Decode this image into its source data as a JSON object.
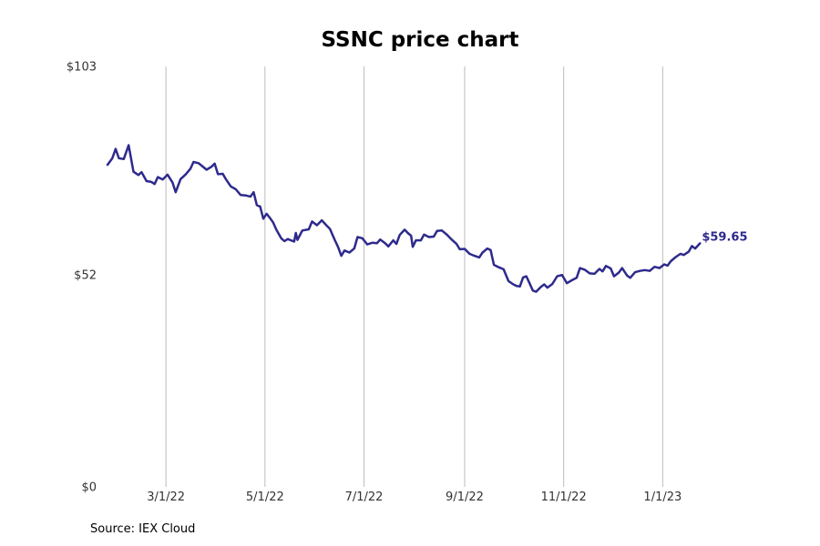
{
  "chart_data": {
    "type": "line",
    "title": "SSNC price chart",
    "xlabel": "",
    "ylabel": "",
    "ylim": [
      0,
      103
    ],
    "y_ticks": [
      {
        "value": 0,
        "label": "$0"
      },
      {
        "value": 52,
        "label": "$52"
      },
      {
        "value": 103,
        "label": "$103"
      }
    ],
    "x_ticks": [
      {
        "date": "2022-03-01",
        "label": "3/1/22"
      },
      {
        "date": "2022-05-01",
        "label": "5/1/22"
      },
      {
        "date": "2022-07-01",
        "label": "7/1/22"
      },
      {
        "date": "2022-09-01",
        "label": "9/1/22"
      },
      {
        "date": "2022-11-01",
        "label": "11/1/22"
      },
      {
        "date": "2023-01-01",
        "label": "1/1/23"
      }
    ],
    "x_range": [
      "2022-01-24",
      "2023-02-22"
    ],
    "grid": "vertical",
    "line_color": "#2e2a8c",
    "end_label": "$59.65",
    "series": [
      {
        "points": [
          [
            "2022-01-24",
            78.9
          ],
          [
            "2022-01-27",
            80.5
          ],
          [
            "2022-01-29",
            82.8
          ],
          [
            "2022-01-31",
            80.5
          ],
          [
            "2022-02-03",
            80.3
          ],
          [
            "2022-02-06",
            83.7
          ],
          [
            "2022-02-09",
            77.2
          ],
          [
            "2022-02-12",
            76.4
          ],
          [
            "2022-02-14",
            77.1
          ],
          [
            "2022-02-17",
            74.9
          ],
          [
            "2022-02-20",
            74.7
          ],
          [
            "2022-02-22",
            74.2
          ],
          [
            "2022-02-24",
            75.9
          ],
          [
            "2022-02-27",
            75.3
          ],
          [
            "2022-03-02",
            76.5
          ],
          [
            "2022-03-05",
            74.6
          ],
          [
            "2022-03-07",
            72.2
          ],
          [
            "2022-03-10",
            75.4
          ],
          [
            "2022-03-13",
            76.5
          ],
          [
            "2022-03-16",
            77.9
          ],
          [
            "2022-03-18",
            79.6
          ],
          [
            "2022-03-21",
            79.3
          ],
          [
            "2022-03-23",
            78.7
          ],
          [
            "2022-03-26",
            77.7
          ],
          [
            "2022-03-29",
            78.4
          ],
          [
            "2022-03-31",
            79.2
          ],
          [
            "2022-04-02",
            76.6
          ],
          [
            "2022-04-05",
            76.7
          ],
          [
            "2022-04-07",
            75.3
          ],
          [
            "2022-04-10",
            73.6
          ],
          [
            "2022-04-13",
            72.9
          ],
          [
            "2022-04-16",
            71.5
          ],
          [
            "2022-04-19",
            71.4
          ],
          [
            "2022-04-22",
            71.1
          ],
          [
            "2022-04-24",
            72.2
          ],
          [
            "2022-04-26",
            69.0
          ],
          [
            "2022-04-28",
            68.7
          ],
          [
            "2022-04-30",
            65.7
          ],
          [
            "2022-05-02",
            66.9
          ],
          [
            "2022-05-04",
            65.9
          ],
          [
            "2022-05-06",
            64.8
          ],
          [
            "2022-05-08",
            63.0
          ],
          [
            "2022-05-11",
            60.9
          ],
          [
            "2022-05-13",
            60.2
          ],
          [
            "2022-05-15",
            60.7
          ],
          [
            "2022-05-17",
            60.4
          ],
          [
            "2022-05-19",
            60.1
          ],
          [
            "2022-05-20",
            62.2
          ],
          [
            "2022-05-21",
            60.5
          ],
          [
            "2022-05-24",
            62.8
          ],
          [
            "2022-05-28",
            63.1
          ],
          [
            "2022-05-30",
            65.0
          ],
          [
            "2022-06-02",
            64.1
          ],
          [
            "2022-06-05",
            65.3
          ],
          [
            "2022-06-08",
            64.0
          ],
          [
            "2022-06-10",
            63.2
          ],
          [
            "2022-06-13",
            60.5
          ],
          [
            "2022-06-15",
            58.8
          ],
          [
            "2022-06-17",
            56.6
          ],
          [
            "2022-06-19",
            57.9
          ],
          [
            "2022-06-22",
            57.4
          ],
          [
            "2022-06-25",
            58.4
          ],
          [
            "2022-06-27",
            61.2
          ],
          [
            "2022-06-30",
            60.9
          ],
          [
            "2022-07-03",
            59.4
          ],
          [
            "2022-07-06",
            59.8
          ],
          [
            "2022-07-09",
            59.7
          ],
          [
            "2022-07-11",
            60.6
          ],
          [
            "2022-07-14",
            59.7
          ],
          [
            "2022-07-16",
            58.9
          ],
          [
            "2022-07-19",
            60.4
          ],
          [
            "2022-07-21",
            59.5
          ],
          [
            "2022-07-23",
            61.7
          ],
          [
            "2022-07-26",
            63.0
          ],
          [
            "2022-07-28",
            62.2
          ],
          [
            "2022-07-30",
            61.5
          ],
          [
            "2022-07-31",
            58.8
          ],
          [
            "2022-08-02",
            60.4
          ],
          [
            "2022-08-05",
            60.4
          ],
          [
            "2022-08-07",
            61.8
          ],
          [
            "2022-08-10",
            61.2
          ],
          [
            "2022-08-13",
            61.3
          ],
          [
            "2022-08-15",
            62.7
          ],
          [
            "2022-08-18",
            62.8
          ],
          [
            "2022-08-21",
            61.8
          ],
          [
            "2022-08-24",
            60.6
          ],
          [
            "2022-08-27",
            59.5
          ],
          [
            "2022-08-29",
            58.2
          ],
          [
            "2022-09-01",
            58.3
          ],
          [
            "2022-09-04",
            57.1
          ],
          [
            "2022-09-07",
            56.6
          ],
          [
            "2022-09-10",
            56.2
          ],
          [
            "2022-09-12",
            57.4
          ],
          [
            "2022-09-15",
            58.4
          ],
          [
            "2022-09-17",
            58.0
          ],
          [
            "2022-09-19",
            54.4
          ],
          [
            "2022-09-22",
            53.8
          ],
          [
            "2022-09-25",
            53.3
          ],
          [
            "2022-09-28",
            50.4
          ],
          [
            "2022-10-01",
            49.6
          ],
          [
            "2022-10-03",
            49.2
          ],
          [
            "2022-10-05",
            49.1
          ],
          [
            "2022-10-07",
            51.3
          ],
          [
            "2022-10-09",
            51.6
          ],
          [
            "2022-10-11",
            49.9
          ],
          [
            "2022-10-13",
            48.1
          ],
          [
            "2022-10-15",
            47.8
          ],
          [
            "2022-10-18",
            49.0
          ],
          [
            "2022-10-20",
            49.6
          ],
          [
            "2022-10-22",
            48.8
          ],
          [
            "2022-10-25",
            49.7
          ],
          [
            "2022-10-28",
            51.6
          ],
          [
            "2022-10-31",
            51.9
          ],
          [
            "2022-11-03",
            49.9
          ],
          [
            "2022-11-06",
            50.6
          ],
          [
            "2022-11-09",
            51.2
          ],
          [
            "2022-11-11",
            53.6
          ],
          [
            "2022-11-14",
            53.2
          ],
          [
            "2022-11-17",
            52.3
          ],
          [
            "2022-11-20",
            52.2
          ],
          [
            "2022-11-23",
            53.4
          ],
          [
            "2022-11-25",
            52.8
          ],
          [
            "2022-11-27",
            54.1
          ],
          [
            "2022-11-30",
            53.5
          ],
          [
            "2022-12-02",
            51.6
          ],
          [
            "2022-12-05",
            52.5
          ],
          [
            "2022-12-07",
            53.6
          ],
          [
            "2022-12-10",
            51.8
          ],
          [
            "2022-12-12",
            51.2
          ],
          [
            "2022-12-15",
            52.6
          ],
          [
            "2022-12-18",
            52.9
          ],
          [
            "2022-12-21",
            53.1
          ],
          [
            "2022-12-24",
            52.9
          ],
          [
            "2022-12-27",
            53.9
          ],
          [
            "2022-12-30",
            53.6
          ],
          [
            "2023-01-02",
            54.5
          ],
          [
            "2023-01-04",
            54.2
          ],
          [
            "2023-01-06",
            55.3
          ],
          [
            "2023-01-09",
            56.3
          ],
          [
            "2023-01-12",
            57.1
          ],
          [
            "2023-01-14",
            56.8
          ],
          [
            "2023-01-17",
            57.6
          ],
          [
            "2023-01-19",
            59.0
          ],
          [
            "2023-01-21",
            58.4
          ],
          [
            "2023-01-24",
            59.65
          ]
        ]
      }
    ]
  },
  "source": "Source: IEX Cloud"
}
